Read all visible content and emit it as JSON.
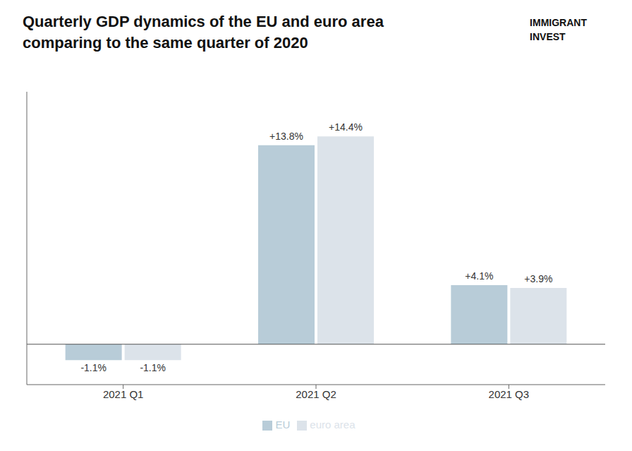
{
  "chart_data": {
    "type": "bar",
    "title": "Quarterly GDP dynamics of the EU and euro area",
    "subtitle": "comparing to the same quarter of 2020",
    "categories": [
      "2021 Q1",
      "2021 Q2",
      "2021 Q3"
    ],
    "series": [
      {
        "name": "EU",
        "color": "#b8ccd8",
        "values": [
          -1.1,
          13.8,
          4.1
        ],
        "value_labels": [
          "-1.1%",
          "+13.8%",
          "+4.1%"
        ]
      },
      {
        "name": "euro area",
        "color": "#dce3ea",
        "values": [
          -1.1,
          14.4,
          3.9
        ],
        "value_labels": [
          "-1.1%",
          "+14.4%",
          "+3.9%"
        ]
      }
    ],
    "ylim": [
      -2.8,
      17.5
    ],
    "grid": false,
    "legend": "bottom",
    "data_labels": true,
    "tick_labels": "x",
    "annotations": [
      "IMMIGRANT",
      "INVEST"
    ]
  }
}
